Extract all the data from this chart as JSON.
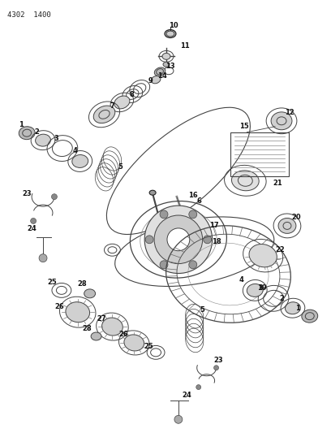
{
  "background_color": "#ffffff",
  "header_text": "4302  1400",
  "figsize": [
    4.08,
    5.33
  ],
  "dpi": 100
}
